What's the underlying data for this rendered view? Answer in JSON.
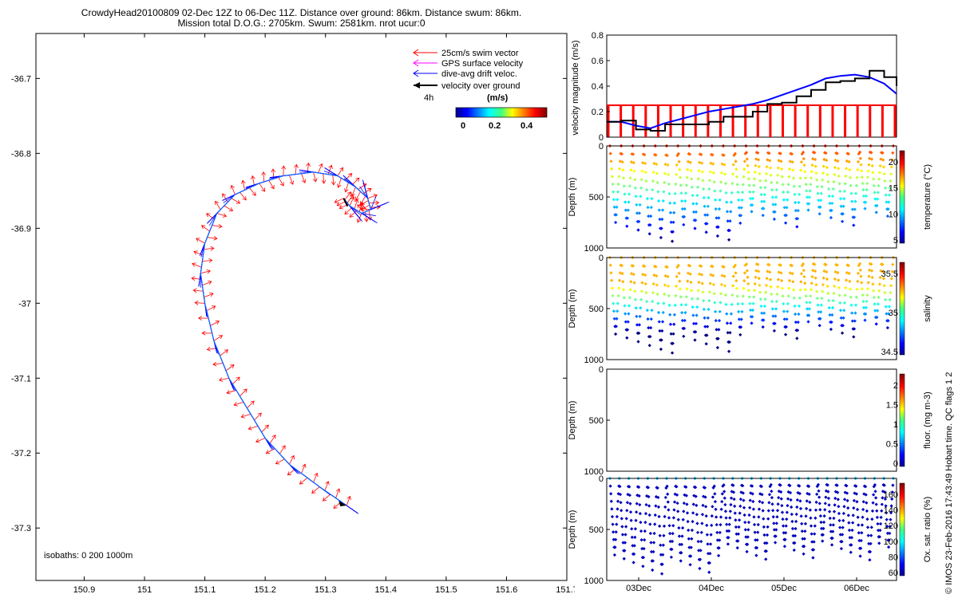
{
  "figure": {
    "title_line1": "CrowdyHead20100809 02-Dec 12Z to 06-Dec 11Z. Distance over ground: 86km. Distance swum: 86km.",
    "title_line2": "Mission total D.O.G.: 2705km. Swum: 2581km. nrot ucur:0",
    "footer_vertical": "© IMOS 23-Feb-2016 17:43:49 Hobart time. QC flags 1  2"
  },
  "colors": {
    "swim": "#ff0000",
    "gps": "#ff00ff",
    "drift": "#0000ff",
    "ground": "#000000",
    "speed_gps": "#ff0000"
  },
  "map_legend": {
    "swim": "25cm/s swim vector",
    "gps": "GPS surface velocity",
    "drift": "dive-avg drift veloc.",
    "ground": "velocity over ground",
    "time_scale": "4h",
    "colorbar_title": "(m/s)",
    "colorbar_ticks": [
      "0",
      "0.2",
      "0.4"
    ]
  },
  "isobaths_label": "isobaths: 0   200  1000m",
  "chart_data": [
    {
      "type": "scatter",
      "name": "track-map",
      "xlim": [
        150.82,
        151.7
      ],
      "ylim": [
        -37.37,
        -36.64
      ],
      "x_ticks": [
        150.9,
        151,
        151.1,
        151.2,
        151.3,
        151.4,
        151.5,
        151.6,
        151.7
      ],
      "x_tick_labels": [
        "150.9",
        "151",
        "151.1",
        "151.2",
        "151.3",
        "151.4",
        "151.5",
        "151.6",
        "151.7"
      ],
      "y_ticks": [
        -36.7,
        -36.8,
        -36.9,
        -37,
        -37.1,
        -37.2,
        -37.3
      ],
      "y_tick_labels": [
        "-36.7",
        "-36.8",
        "-36.9",
        "-37",
        "-37.1",
        "-37.2",
        "-37.3"
      ],
      "track": [
        [
          151.335,
          -37.27
        ],
        [
          151.29,
          -37.245
        ],
        [
          151.24,
          -37.215
        ],
        [
          151.2,
          -37.18
        ],
        [
          151.17,
          -37.14
        ],
        [
          151.14,
          -37.1
        ],
        [
          151.115,
          -37.05
        ],
        [
          151.1,
          -37.0
        ],
        [
          151.093,
          -36.96
        ],
        [
          151.1,
          -36.92
        ],
        [
          151.12,
          -36.88
        ],
        [
          151.15,
          -36.855
        ],
        [
          151.19,
          -36.84
        ],
        [
          151.23,
          -36.83
        ],
        [
          151.28,
          -36.825
        ],
        [
          151.32,
          -36.83
        ],
        [
          151.35,
          -36.845
        ],
        [
          151.37,
          -36.86
        ],
        [
          151.375,
          -36.875
        ],
        [
          151.36,
          -36.88
        ],
        [
          151.34,
          -36.87
        ],
        [
          151.33,
          -36.86
        ]
      ]
    },
    {
      "type": "line",
      "name": "velocity-magnitude",
      "ylabel": "velocity magnitude (m/s)",
      "xlim": [
        2.5,
        6.47
      ],
      "ylim": [
        0,
        0.8
      ],
      "y_ticks": [
        0,
        0.2,
        0.4,
        0.6,
        0.8
      ],
      "y_tick_labels": [
        "0",
        "0.2",
        "0.4",
        "0.6",
        "0.8"
      ],
      "series": [
        {
          "x": [
            2.5,
            2.7,
            2.9,
            3.1,
            3.3,
            3.5,
            3.7,
            3.9,
            4.1,
            4.3,
            4.5,
            4.7,
            4.9,
            5.1,
            5.3,
            5.5,
            5.7,
            5.9,
            6.1,
            6.3,
            6.47
          ],
          "values": [
            0.12,
            0.12,
            0.09,
            0.07,
            0.11,
            0.14,
            0.17,
            0.2,
            0.22,
            0.24,
            0.26,
            0.29,
            0.33,
            0.37,
            0.41,
            0.46,
            0.48,
            0.49,
            0.47,
            0.42,
            0.34
          ]
        },
        {
          "x": [
            2.5,
            2.7,
            2.9,
            3.1,
            3.3,
            3.5,
            3.7,
            3.9,
            4.1,
            4.3,
            4.5,
            4.7,
            4.9,
            5.1,
            5.3,
            5.5,
            5.7,
            5.9,
            6.1,
            6.3,
            6.47
          ],
          "values": [
            0.12,
            0.13,
            0.06,
            0.05,
            0.1,
            0.1,
            0.1,
            0.12,
            0.16,
            0.16,
            0.2,
            0.26,
            0.27,
            0.32,
            0.37,
            0.43,
            0.44,
            0.46,
            0.52,
            0.47,
            0.4
          ]
        },
        {
          "value": 0.25
        }
      ]
    },
    {
      "type": "scatter",
      "name": "temperature-section",
      "ylabel": "Depth (m)",
      "ylim": [
        1000,
        0
      ],
      "y_tick_labels": [
        "0",
        "500",
        "1000"
      ],
      "colorbar_label": "temperature (°C)",
      "colorbar_ticks": [
        "20",
        "15",
        "10",
        "5"
      ],
      "surface_value": 20,
      "bottom_value": 5
    },
    {
      "type": "scatter",
      "name": "salinity-section",
      "ylabel": "Depth (m)",
      "ylim": [
        1000,
        0
      ],
      "y_tick_labels": [
        "0",
        "500",
        "1000"
      ],
      "colorbar_label": "salinity",
      "colorbar_ticks": [
        "35.5",
        "35",
        "34.5"
      ]
    },
    {
      "type": "scatter",
      "name": "fluorescence-section",
      "ylabel": "Depth (m)",
      "ylim": [
        1000,
        0
      ],
      "y_tick_labels": [
        "0",
        "500",
        "1000"
      ],
      "colorbar_label": "fluor. (mg m-3)",
      "colorbar_ticks": [
        "2",
        "1.5",
        "1",
        "0.5",
        "0"
      ]
    },
    {
      "type": "scatter",
      "name": "oxygen-section",
      "ylabel": "Depth (m)",
      "ylim": [
        1000,
        0
      ],
      "y_tick_labels": [
        "0",
        "500",
        "1000"
      ],
      "x_tick_labels": [
        "03Dec",
        "04Dec",
        "05Dec",
        "06Dec"
      ],
      "colorbar_label": "Ox. sat. ratio (%)",
      "colorbar_ticks": [
        "160",
        "140",
        "120",
        "100",
        "80",
        "60"
      ]
    }
  ]
}
